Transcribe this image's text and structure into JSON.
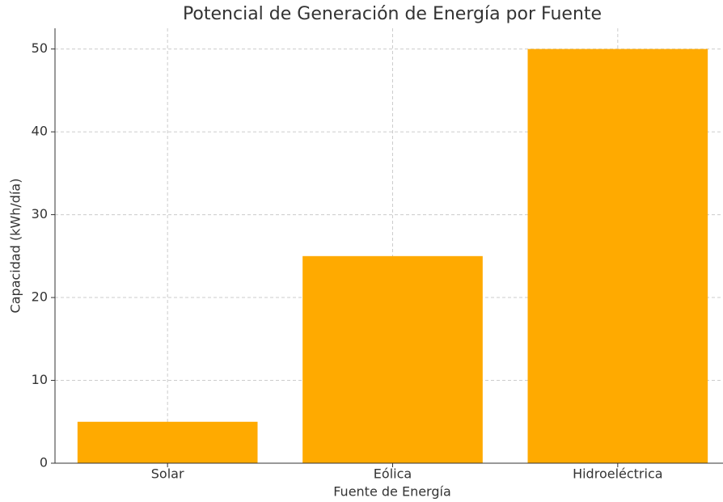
{
  "chart_data": {
    "type": "bar",
    "title": "Potencial de Generación de Energía por Fuente",
    "x_label": "Fuente de Energía",
    "y_label": "Capacidad (kWh/día)",
    "categories": [
      "Solar",
      "Eólica",
      "Hidroeléctrica"
    ],
    "values": [
      5,
      25,
      50
    ],
    "color": "#ffaa00",
    "ylim": [
      0,
      52.5
    ],
    "yticks": [
      0,
      10,
      20,
      30,
      40,
      50
    ],
    "grid": true
  }
}
